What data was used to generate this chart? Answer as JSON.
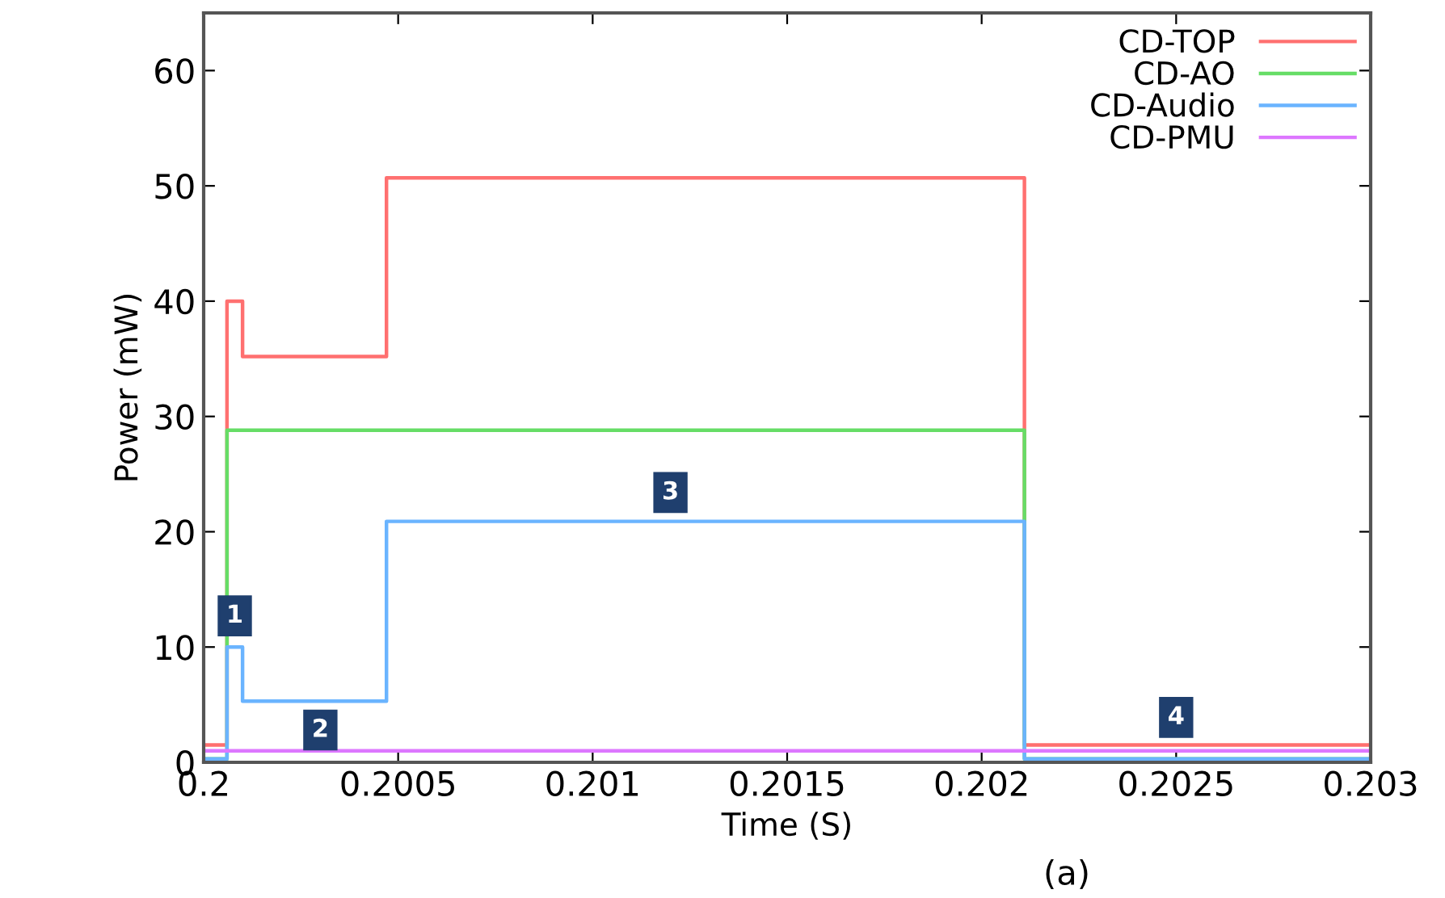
{
  "chart_data": {
    "type": "step",
    "xlabel": "Time (S)",
    "ylabel": "Power (mW)",
    "xlim": [
      0.2,
      0.203
    ],
    "ylim": [
      0,
      65
    ],
    "xticks": [
      0.2,
      0.2005,
      0.201,
      0.2015,
      0.202,
      0.2025,
      0.203
    ],
    "yticks": [
      0,
      10,
      20,
      30,
      40,
      50,
      60
    ],
    "grid": false,
    "legend": "top right",
    "series": [
      {
        "name": "CD-TOP",
        "color": "#ff7070",
        "x": [
          0.2,
          0.20006,
          0.2001,
          0.20047,
          0.20211,
          0.203
        ],
        "values": [
          1.5,
          40,
          35.2,
          50.7,
          1.5,
          1.5
        ]
      },
      {
        "name": "CD-AO",
        "color": "#66dd66",
        "x": [
          0.2,
          0.20006,
          0.20211,
          0.203
        ],
        "values": [
          0.3,
          28.8,
          0.3,
          0.3
        ]
      },
      {
        "name": "CD-Audio",
        "color": "#6ab4ff",
        "x": [
          0.2,
          0.20006,
          0.2001,
          0.20047,
          0.20211,
          0.203
        ],
        "values": [
          0.3,
          10,
          5.3,
          20.9,
          0.3,
          0.3
        ]
      },
      {
        "name": "CD-PMU",
        "color": "#dd77ff",
        "x": [
          0.2,
          0.203
        ],
        "values": [
          1.0,
          1.0
        ]
      }
    ],
    "annotations": [
      {
        "text": "1",
        "x": 0.20008,
        "y": 12.7
      },
      {
        "text": "2",
        "x": 0.2003,
        "y": 2.8
      },
      {
        "text": "3",
        "x": 0.2012,
        "y": 23.4
      },
      {
        "text": "4",
        "x": 0.2025,
        "y": 3.9
      },
      "(a)"
    ]
  }
}
